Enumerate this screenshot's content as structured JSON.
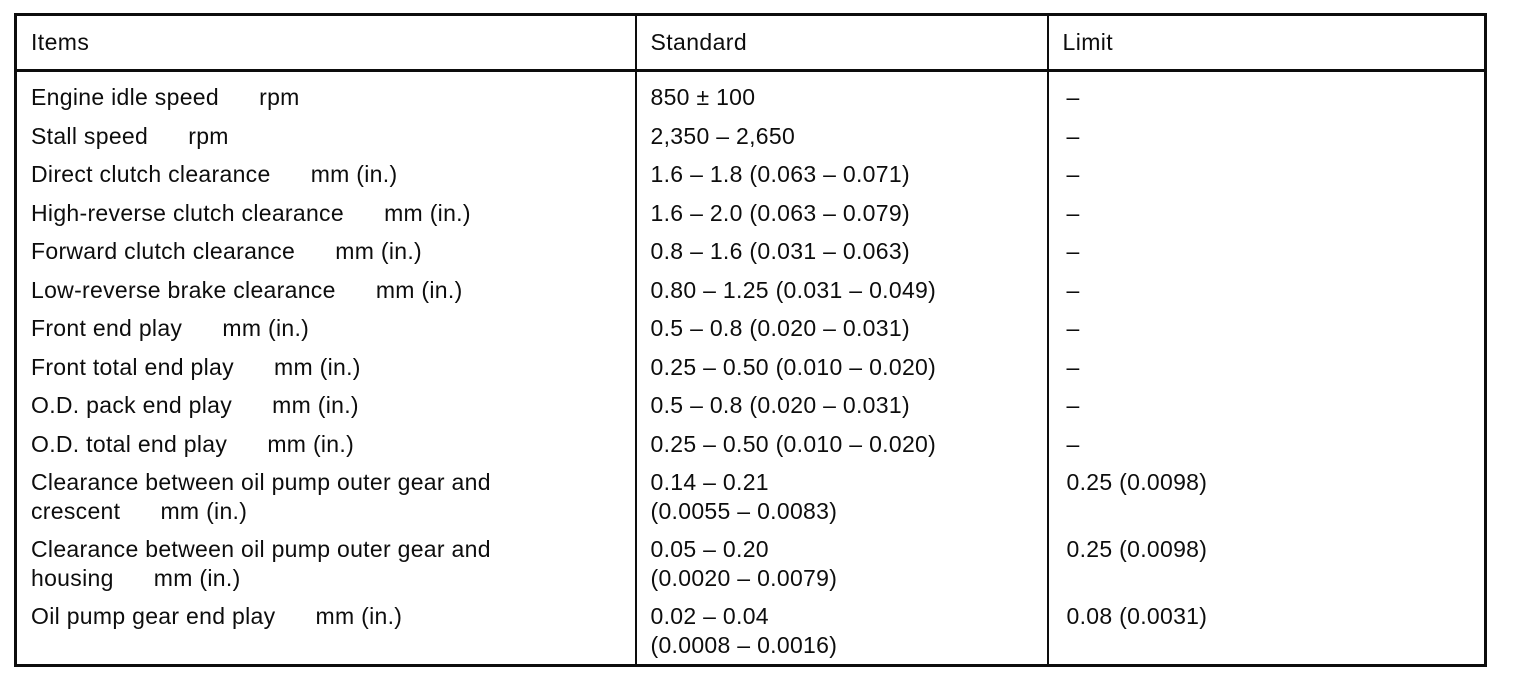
{
  "table": {
    "columns": [
      "Items",
      "Standard",
      "Limit"
    ],
    "rows": [
      {
        "item": "Engine idle speed      rpm",
        "standard": "850 ± 100",
        "limit": "–"
      },
      {
        "item": "Stall speed      rpm",
        "standard": "2,350 – 2,650",
        "limit": "–"
      },
      {
        "item": "Direct clutch clearance      mm (in.)",
        "standard": "1.6 – 1.8 (0.063 – 0.071)",
        "limit": "–"
      },
      {
        "item": "High-reverse clutch clearance      mm (in.)",
        "standard": "1.6 – 2.0 (0.063 – 0.079)",
        "limit": "–"
      },
      {
        "item": "Forward clutch clearance      mm (in.)",
        "standard": "0.8 – 1.6 (0.031 – 0.063)",
        "limit": "–"
      },
      {
        "item": "Low-reverse brake clearance      mm (in.)",
        "standard": "0.80 – 1.25 (0.031 – 0.049)",
        "limit": "–"
      },
      {
        "item": "Front end play      mm (in.)",
        "standard": "0.5 – 0.8 (0.020 – 0.031)",
        "limit": "–"
      },
      {
        "item": "Front total end play      mm (in.)",
        "standard": "0.25 – 0.50 (0.010 – 0.020)",
        "limit": "–"
      },
      {
        "item": "O.D. pack end play      mm (in.)",
        "standard": "0.5 – 0.8 (0.020 – 0.031)",
        "limit": "–"
      },
      {
        "item": "O.D. total end play      mm (in.)",
        "standard": "0.25 – 0.50 (0.010 – 0.020)",
        "limit": "–"
      },
      {
        "item": "Clearance between oil pump outer gear and\ncrescent      mm (in.)",
        "standard": "0.14 – 0.21\n(0.0055 – 0.0083)",
        "limit": "0.25 (0.0098)"
      },
      {
        "item": "Clearance between oil pump outer gear and\nhousing      mm (in.)",
        "standard": "0.05 – 0.20\n(0.0020 – 0.0079)",
        "limit": "0.25 (0.0098)"
      },
      {
        "item": "Oil pump gear end play      mm (in.)",
        "standard": "0.02 – 0.04\n(0.0008 – 0.0016)",
        "limit": "0.08 (0.0031)"
      }
    ]
  },
  "colors": {
    "ink": "#0d0d0d",
    "paper": "#ffffff"
  }
}
